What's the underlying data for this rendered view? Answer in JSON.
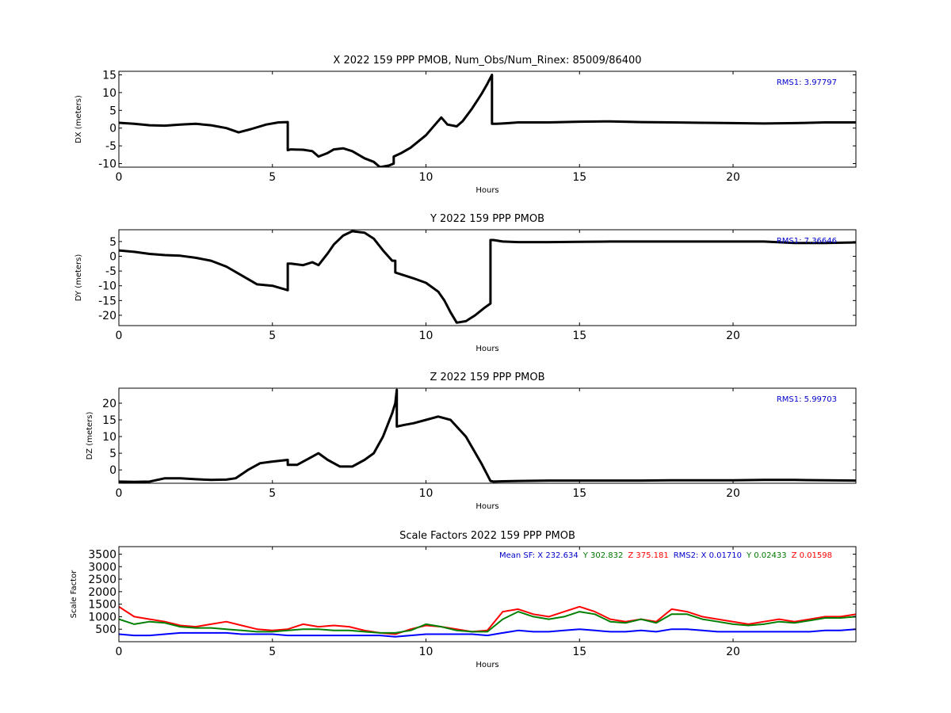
{
  "chart_data": [
    {
      "type": "line",
      "title": "X 2022 159 PPP  PMOB, Num_Obs/Num_Rinex: 85009/86400",
      "xlabel": "Hours",
      "ylabel": "DX (meters)",
      "xlim": [
        0,
        24
      ],
      "ylim": [
        -11,
        16
      ],
      "xticks": [
        0,
        5,
        10,
        15,
        20
      ],
      "yticks": [
        -10,
        -5,
        0,
        5,
        10,
        15
      ],
      "annotation": "RMS1:  3.97797",
      "annotation_color": "#0000cc",
      "series": [
        {
          "color": "#000000",
          "x": [
            0,
            0.5,
            1,
            1.5,
            2,
            2.5,
            3,
            3.5,
            3.9,
            4.3,
            4.8,
            5.2,
            5.5,
            5.5,
            5.6,
            6,
            6.3,
            6.5,
            6.8,
            7,
            7.3,
            7.6,
            8,
            8.3,
            8.5,
            8.8,
            8.95,
            8.95,
            9.2,
            9.5,
            10,
            10.3,
            10.5,
            10.7,
            11,
            11.2,
            11.5,
            11.8,
            12,
            12.15,
            12.15,
            12.3,
            12.7,
            13,
            14,
            15,
            16,
            17,
            18,
            19,
            20,
            21,
            22,
            23,
            24
          ],
          "y": [
            1.5,
            1.2,
            0.8,
            0.7,
            1,
            1.2,
            0.8,
            0,
            -1.2,
            -0.3,
            1,
            1.6,
            1.7,
            -6.2,
            -6,
            -6.1,
            -6.5,
            -8,
            -7,
            -6,
            -5.7,
            -6.5,
            -8.5,
            -9.5,
            -11,
            -10.5,
            -10,
            -8,
            -7,
            -5.5,
            -2,
            1,
            3,
            1,
            0.5,
            2,
            5.5,
            9.5,
            12.5,
            15,
            1.2,
            1.2,
            1.4,
            1.6,
            1.6,
            1.8,
            1.9,
            1.7,
            1.6,
            1.5,
            1.4,
            1.3,
            1.4,
            1.6,
            1.6
          ]
        }
      ]
    },
    {
      "type": "line",
      "title": "Y 2022 159 PPP  PMOB",
      "xlabel": "Hours",
      "ylabel": "DY (meters)",
      "xlim": [
        0,
        24
      ],
      "ylim": [
        -23.5,
        9
      ],
      "xticks": [
        0,
        5,
        10,
        15,
        20
      ],
      "yticks": [
        -20,
        -15,
        -10,
        -5,
        0,
        5
      ],
      "annotation": "RMS1:  7.36646",
      "annotation_color": "#0000cc",
      "series": [
        {
          "color": "#000000",
          "x": [
            0,
            0.5,
            1,
            1.5,
            2,
            2.5,
            3,
            3.5,
            4,
            4.5,
            5,
            5.5,
            5.5,
            5.6,
            6,
            6.3,
            6.5,
            6.8,
            7,
            7.3,
            7.6,
            8,
            8.3,
            8.6,
            8.9,
            9,
            9,
            9.3,
            9.6,
            10,
            10.4,
            10.6,
            10.8,
            11,
            11.3,
            11.6,
            11.9,
            12.1,
            12.1,
            12.2,
            12.5,
            13,
            14,
            15,
            16,
            17,
            18,
            19,
            20,
            21,
            22,
            23,
            24
          ],
          "y": [
            2,
            1.5,
            0.8,
            0.4,
            0.2,
            -0.5,
            -1.5,
            -3.5,
            -6.5,
            -9.5,
            -10,
            -11.5,
            -2.5,
            -2.5,
            -3,
            -2,
            -3,
            1,
            4,
            7,
            8.5,
            8,
            6,
            2,
            -1.5,
            -1.5,
            -5.5,
            -6.5,
            -7.5,
            -9,
            -12,
            -15,
            -19,
            -22.5,
            -22,
            -20,
            -17.5,
            -16,
            5.5,
            5.5,
            5,
            4.8,
            4.8,
            4.9,
            5,
            5,
            5,
            5,
            5,
            5,
            4.5,
            4.5,
            4.7
          ]
        }
      ]
    },
    {
      "type": "line",
      "title": "Z 2022 159 PPP  PMOB",
      "xlabel": "Hours",
      "ylabel": "DZ (meters)",
      "xlim": [
        0,
        24
      ],
      "ylim": [
        -4,
        24.5
      ],
      "xticks": [
        0,
        5,
        10,
        15,
        20
      ],
      "yticks": [
        0,
        5,
        10,
        15,
        20
      ],
      "annotation": "RMS1:  5.99703",
      "annotation_color": "#0000cc",
      "series": [
        {
          "color": "#000000",
          "x": [
            0,
            0.5,
            1,
            1.5,
            2,
            2.5,
            3,
            3.5,
            3.8,
            4.2,
            4.6,
            5,
            5.5,
            5.5,
            5.8,
            6.2,
            6.5,
            6.8,
            7.2,
            7.6,
            8,
            8.3,
            8.6,
            8.9,
            9,
            9.05,
            9.05,
            9.3,
            9.6,
            10,
            10.4,
            10.8,
            11.3,
            11.8,
            12.1,
            12.2,
            12.5,
            13,
            14,
            15,
            16,
            17,
            18,
            19,
            20,
            21,
            22,
            23,
            24
          ],
          "y": [
            -3.5,
            -3.6,
            -3.5,
            -2.5,
            -2.5,
            -2.8,
            -3,
            -2.9,
            -2.5,
            0,
            2,
            2.5,
            3,
            1.5,
            1.5,
            3.5,
            5,
            3,
            1,
            1,
            3,
            5,
            10,
            17,
            20,
            24,
            13,
            13.5,
            14,
            15,
            16,
            15,
            10,
            2,
            -3.3,
            -3.5,
            -3.4,
            -3.3,
            -3.2,
            -3.2,
            -3.2,
            -3.2,
            -3.1,
            -3.1,
            -3.1,
            -3,
            -3,
            -3.1,
            -3.2
          ]
        }
      ]
    },
    {
      "type": "line",
      "title": "Scale Factors 2022 159 PPP  PMOB",
      "xlabel": "Hours",
      "ylabel": "Scale Factor",
      "xlim": [
        0,
        24
      ],
      "ylim": [
        0,
        3800
      ],
      "xticks": [
        0,
        5,
        10,
        15,
        20
      ],
      "yticks": [
        500,
        1000,
        1500,
        2000,
        2500,
        3000,
        3500
      ],
      "legend_text": [
        {
          "text": "Mean SF: X 232.634",
          "color": "#0000cc"
        },
        {
          "text": "Y 302.832",
          "color": "#007700"
        },
        {
          "text": "Z 375.181",
          "color": "#ff0000"
        },
        {
          "text": "RMS2: X  0.01710",
          "color": "#0000cc"
        },
        {
          "text": "Y  0.02433",
          "color": "#007700"
        },
        {
          "text": "Z  0.01598",
          "color": "#ff0000"
        }
      ],
      "series": [
        {
          "color": "#ff0000",
          "x": [
            0,
            0.5,
            1,
            1.5,
            2,
            2.5,
            3,
            3.5,
            4,
            4.5,
            5,
            5.5,
            6,
            6.5,
            7,
            7.5,
            8,
            8.5,
            9,
            9.5,
            10,
            10.5,
            11,
            11.5,
            12,
            12.5,
            13,
            13.5,
            14,
            14.5,
            15,
            15.5,
            16,
            16.5,
            17,
            17.5,
            18,
            18.5,
            19,
            19.5,
            20,
            20.5,
            21,
            21.5,
            22,
            22.5,
            23,
            23.5,
            24
          ],
          "y": [
            1400,
            1000,
            900,
            800,
            650,
            600,
            700,
            800,
            650,
            500,
            450,
            500,
            700,
            600,
            650,
            600,
            450,
            350,
            300,
            500,
            650,
            600,
            500,
            400,
            450,
            1200,
            1300,
            1100,
            1000,
            1200,
            1400,
            1200,
            900,
            800,
            900,
            800,
            1300,
            1200,
            1000,
            900,
            800,
            700,
            800,
            900,
            800,
            900,
            1000,
            1000,
            1100
          ]
        },
        {
          "color": "#008000",
          "x": [
            0,
            0.5,
            1,
            1.5,
            2,
            2.5,
            3,
            3.5,
            4,
            4.5,
            5,
            5.5,
            6,
            6.5,
            7,
            7.5,
            8,
            8.5,
            9,
            9.5,
            10,
            10.5,
            11,
            11.5,
            12,
            12.5,
            13,
            13.5,
            14,
            14.5,
            15,
            15.5,
            16,
            16.5,
            17,
            17.5,
            18,
            18.5,
            19,
            19.5,
            20,
            20.5,
            21,
            21.5,
            22,
            22.5,
            23,
            23.5,
            24
          ],
          "y": [
            900,
            700,
            800,
            750,
            600,
            550,
            550,
            500,
            450,
            400,
            400,
            450,
            500,
            500,
            450,
            450,
            400,
            350,
            350,
            450,
            700,
            600,
            450,
            400,
            400,
            900,
            1200,
            1000,
            900,
            1000,
            1200,
            1100,
            800,
            750,
            900,
            750,
            1100,
            1100,
            900,
            800,
            700,
            650,
            700,
            800,
            750,
            850,
            950,
            950,
            1000
          ]
        },
        {
          "color": "#0000ff",
          "x": [
            0,
            0.5,
            1,
            1.5,
            2,
            2.5,
            3,
            3.5,
            4,
            4.5,
            5,
            5.5,
            6,
            6.5,
            7,
            7.5,
            8,
            8.5,
            9,
            9.5,
            10,
            10.5,
            11,
            11.5,
            12,
            12.5,
            13,
            13.5,
            14,
            14.5,
            15,
            15.5,
            16,
            16.5,
            17,
            17.5,
            18,
            18.5,
            19,
            19.5,
            20,
            20.5,
            21,
            21.5,
            22,
            22.5,
            23,
            23.5,
            24
          ],
          "y": [
            300,
            250,
            250,
            300,
            350,
            350,
            350,
            350,
            300,
            300,
            300,
            250,
            250,
            250,
            250,
            250,
            250,
            250,
            200,
            250,
            300,
            300,
            300,
            300,
            250,
            350,
            450,
            400,
            400,
            450,
            500,
            450,
            400,
            400,
            450,
            400,
            500,
            500,
            450,
            400,
            400,
            400,
            400,
            400,
            400,
            400,
            450,
            450,
            500
          ]
        }
      ]
    }
  ]
}
